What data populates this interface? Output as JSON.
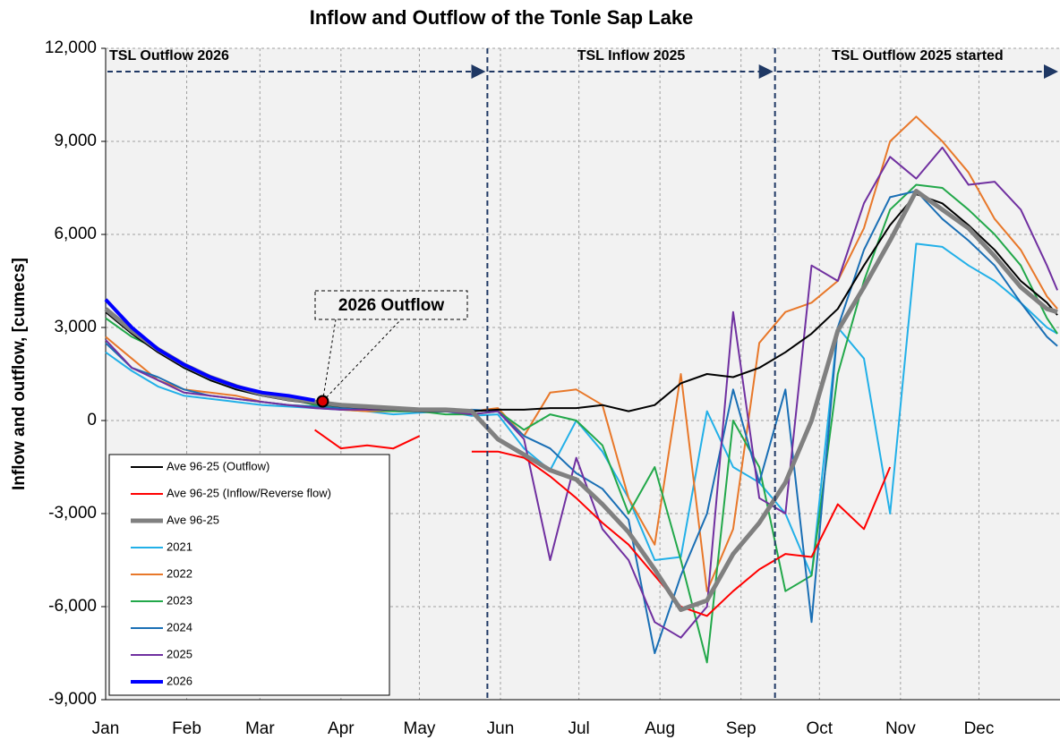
{
  "chart_data": {
    "type": "line",
    "title": "Inflow and Outflow of the Tonle Sap Lake",
    "y_label": "Inflow and outflow, [cumecs]",
    "x": [
      1,
      11,
      21,
      31,
      41,
      51,
      61,
      71,
      81,
      91,
      101,
      111,
      121,
      131,
      141,
      151,
      161,
      171,
      181,
      191,
      201,
      211,
      221,
      231,
      241,
      251,
      261,
      271,
      281,
      291,
      301,
      311,
      321,
      331,
      341,
      351,
      361,
      365
    ],
    "xlim": [
      1,
      366
    ],
    "xticks": [
      {
        "value": 1,
        "label": "Jan"
      },
      {
        "value": 32,
        "label": "Feb"
      },
      {
        "value": 60,
        "label": "Mar"
      },
      {
        "value": 91,
        "label": "Apr"
      },
      {
        "value": 121,
        "label": "May"
      },
      {
        "value": 152,
        "label": "Jun"
      },
      {
        "value": 182,
        "label": "Jul"
      },
      {
        "value": 213,
        "label": "Aug"
      },
      {
        "value": 244,
        "label": "Sep"
      },
      {
        "value": 274,
        "label": "Oct"
      },
      {
        "value": 305,
        "label": "Nov"
      },
      {
        "value": 335,
        "label": "Dec"
      }
    ],
    "ylim": [
      -9000,
      12000
    ],
    "yticks": [
      {
        "value": -9000,
        "label": "-9,000"
      },
      {
        "value": -6000,
        "label": "-6,000"
      },
      {
        "value": -3000,
        "label": "-3,000"
      },
      0,
      {
        "value": 3000,
        "label": "3,000"
      },
      {
        "value": 6000,
        "label": "6,000"
      },
      {
        "value": 9000,
        "label": "9,000"
      },
      {
        "value": 12000,
        "label": "12,000"
      }
    ],
    "grid": true,
    "legend": "lower left",
    "period_lines": [
      147,
      257
    ],
    "period_labels": [
      "TSL Outflow 2026",
      "TSL Inflow 2025",
      "TSL Outflow 2025 started"
    ],
    "callout": {
      "text": "2026 Outflow",
      "x": 84,
      "y": 620
    },
    "series": [
      {
        "name": "Ave 96-25 (Outflow)",
        "color": "#000000",
        "values": [
          3500,
          2800,
          2200,
          1700,
          1300,
          1000,
          800,
          650,
          550,
          450,
          400,
          350,
          300,
          300,
          300,
          350,
          350,
          400,
          400,
          500,
          300,
          500,
          1200,
          1500,
          1400,
          1700,
          2200,
          2800,
          3600,
          5000,
          6300,
          7300,
          7000,
          6300,
          5500,
          4500,
          3800,
          3400
        ]
      },
      {
        "name": "Ave 96-25 (Inflow/Reverse flow)",
        "color": "#ff0000",
        "values": [
          null,
          null,
          null,
          null,
          null,
          null,
          null,
          null,
          -300,
          -900,
          -800,
          -900,
          -500,
          null,
          -1000,
          -1000,
          -1200,
          -1800,
          -2500,
          -3300,
          -4000,
          -5000,
          -6000,
          -6300,
          -5500,
          -4800,
          -4300,
          -4400,
          -2700,
          -3500,
          -1500,
          null,
          null,
          null,
          null,
          null,
          null,
          null
        ]
      },
      {
        "name": "Ave 96-25",
        "color": "#808080",
        "values": [
          3600,
          2900,
          2300,
          1800,
          1400,
          1100,
          850,
          700,
          600,
          500,
          450,
          400,
          350,
          350,
          300,
          -600,
          -1100,
          -1600,
          -1900,
          -2700,
          -3600,
          -4800,
          -6100,
          -5800,
          -4300,
          -3300,
          -2000,
          0,
          2900,
          4300,
          5800,
          7400,
          6800,
          6200,
          5300,
          4300,
          3600,
          3500
        ]
      },
      {
        "name": "2021",
        "color": "#22b0e8",
        "values": [
          2200,
          1600,
          1100,
          800,
          700,
          600,
          500,
          450,
          400,
          350,
          300,
          200,
          250,
          300,
          150,
          200,
          -900,
          -1600,
          0,
          -1000,
          -2500,
          -4500,
          -4400,
          300,
          -1500,
          -2000,
          -3000,
          -5000,
          3000,
          2000,
          -3000,
          5700,
          5600,
          5000,
          4500,
          3800,
          3000,
          2800
        ]
      },
      {
        "name": "2022",
        "color": "#e8782a",
        "values": [
          2700,
          2000,
          1300,
          1000,
          900,
          800,
          600,
          500,
          450,
          350,
          300,
          300,
          300,
          350,
          300,
          400,
          -500,
          900,
          1000,
          500,
          -2500,
          -4000,
          1500,
          -5500,
          -3500,
          2500,
          3500,
          3800,
          4500,
          6200,
          9000,
          9800,
          9000,
          8000,
          6500,
          5500,
          4000,
          3600
        ]
      },
      {
        "name": "2023",
        "color": "#22a84a",
        "values": [
          3300,
          2700,
          2300,
          1700,
          1300,
          1000,
          800,
          700,
          500,
          400,
          350,
          300,
          300,
          200,
          200,
          300,
          -300,
          200,
          0,
          -800,
          -3000,
          -1500,
          -4500,
          -7800,
          0,
          -1500,
          -5500,
          -5000,
          1500,
          4500,
          6800,
          7600,
          7500,
          6800,
          6000,
          5000,
          3300,
          2800
        ]
      },
      {
        "name": "2024",
        "color": "#1a6fb5",
        "values": [
          2500,
          1700,
          1400,
          1000,
          800,
          700,
          600,
          500,
          450,
          400,
          400,
          350,
          300,
          300,
          350,
          300,
          -500,
          -900,
          -1700,
          -2200,
          -3200,
          -7500,
          -5000,
          -3000,
          1000,
          -2000,
          1000,
          -6500,
          3000,
          5500,
          7200,
          7400,
          6500,
          5800,
          5000,
          3800,
          2700,
          2400
        ]
      },
      {
        "name": "2025",
        "color": "#7030a0",
        "values": [
          2600,
          1700,
          1300,
          900,
          800,
          700,
          600,
          500,
          400,
          350,
          350,
          350,
          300,
          300,
          200,
          300,
          -600,
          -4500,
          -1200,
          -3500,
          -4500,
          -6500,
          -7000,
          -6000,
          3500,
          -2500,
          -3000,
          5000,
          4500,
          7000,
          8500,
          7800,
          8800,
          7600,
          7700,
          6800,
          5000,
          4200
        ]
      },
      {
        "name": "2026",
        "color": "#0000ff",
        "values": [
          3900,
          3000,
          2300,
          1800,
          1400,
          1100,
          900,
          800,
          650,
          null,
          null,
          null,
          null,
          null,
          null,
          null,
          null,
          null,
          null,
          null,
          null,
          null,
          null,
          null,
          null,
          null,
          null,
          null,
          null,
          null,
          null,
          null,
          null,
          null,
          null,
          null,
          null,
          null
        ]
      }
    ]
  }
}
